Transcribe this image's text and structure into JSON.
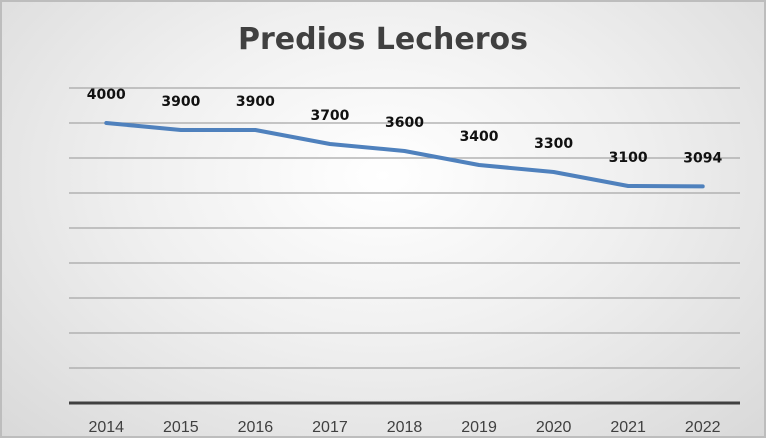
{
  "chart_data": {
    "type": "line",
    "title": "Predios Lecheros",
    "xlabel": "",
    "ylabel": "",
    "categories": [
      "2014",
      "2015",
      "2016",
      "2017",
      "2018",
      "2019",
      "2020",
      "2021",
      "2022"
    ],
    "series": [
      {
        "name": "Predios Lecheros",
        "values": [
          4000,
          3900,
          3900,
          3700,
          3600,
          3400,
          3300,
          3100,
          3094
        ],
        "color": "#4f81bd"
      }
    ],
    "data_labels": [
      "4000",
      "3900",
      "3900",
      "3700",
      "3600",
      "3400",
      "3300",
      "3100",
      "3094"
    ],
    "ylim": [
      0,
      4500
    ],
    "y_tick_step": 500,
    "y_axis_labels_visible": false,
    "grid": true,
    "legend": "none"
  }
}
